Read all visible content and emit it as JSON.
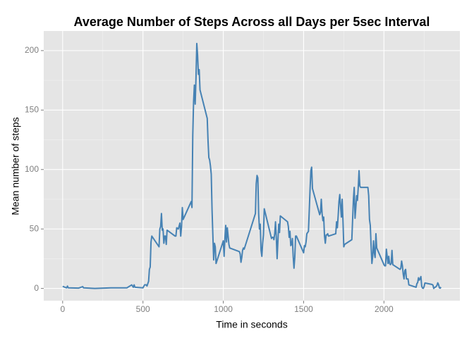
{
  "chart_data": {
    "type": "line",
    "title": "Average Number of Steps Across all Days per 5sec Interval",
    "x_label": "Time in seconds",
    "y_label": "Mean number of steps",
    "color": "#4682b4",
    "x": [
      0,
      25,
      30,
      35,
      100,
      125,
      130,
      200,
      300,
      400,
      430,
      440,
      445,
      450,
      500,
      510,
      520,
      525,
      535,
      540,
      545,
      550,
      555,
      600,
      605,
      610,
      615,
      620,
      625,
      630,
      635,
      640,
      645,
      650,
      700,
      705,
      710,
      720,
      730,
      735,
      740,
      745,
      750,
      800,
      805,
      810,
      815,
      820,
      825,
      830,
      835,
      840,
      845,
      850,
      855,
      900,
      905,
      910,
      915,
      920,
      925,
      930,
      935,
      940,
      945,
      950,
      955,
      1000,
      1005,
      1010,
      1015,
      1020,
      1025,
      1030,
      1035,
      1040,
      1100,
      1105,
      1110,
      1115,
      1120,
      1125,
      1130,
      1200,
      1205,
      1210,
      1215,
      1220,
      1225,
      1230,
      1235,
      1240,
      1245,
      1250,
      1255,
      1300,
      1305,
      1310,
      1315,
      1320,
      1325,
      1330,
      1335,
      1340,
      1345,
      1350,
      1355,
      1400,
      1405,
      1410,
      1415,
      1420,
      1425,
      1430,
      1435,
      1440,
      1445,
      1450,
      1455,
      1500,
      1505,
      1510,
      1515,
      1520,
      1525,
      1530,
      1535,
      1540,
      1545,
      1550,
      1555,
      1600,
      1605,
      1610,
      1615,
      1620,
      1625,
      1630,
      1635,
      1640,
      1645,
      1650,
      1655,
      1700,
      1705,
      1710,
      1715,
      1720,
      1725,
      1730,
      1735,
      1740,
      1745,
      1750,
      1755,
      1800,
      1805,
      1810,
      1815,
      1820,
      1825,
      1830,
      1835,
      1840,
      1845,
      1850,
      1855,
      1900,
      1905,
      1910,
      1915,
      1920,
      1925,
      1930,
      1935,
      1940,
      1945,
      1950,
      1955,
      2000,
      2005,
      2010,
      2015,
      2020,
      2025,
      2030,
      2035,
      2040,
      2045,
      2050,
      2055,
      2100,
      2105,
      2110,
      2115,
      2120,
      2125,
      2130,
      2135,
      2140,
      2145,
      2150,
      2155,
      2200,
      2205,
      2210,
      2215,
      2220,
      2225,
      2230,
      2235,
      2240,
      2245,
      2250,
      2255,
      2300,
      2305,
      2310,
      2315,
      2320,
      2325,
      2330,
      2335,
      2340,
      2345,
      2350,
      2355
    ],
    "values": [
      1.7,
      0.5,
      2,
      0.5,
      0.3,
      1.5,
      0.5,
      0,
      0.5,
      0.5,
      3,
      1,
      3,
      1,
      0.5,
      3,
      3,
      2,
      6,
      16,
      18,
      39,
      44,
      35,
      50,
      52,
      63,
      49,
      50,
      38,
      44,
      44,
      37,
      49,
      44,
      44,
      51,
      50,
      55,
      44,
      52,
      68,
      58,
      73,
      68,
      129,
      157,
      171,
      155,
      177,
      206,
      196,
      180,
      184,
      167,
      143,
      124,
      110,
      108,
      103,
      96,
      66,
      45,
      24,
      38,
      35,
      21,
      40,
      27,
      42,
      53,
      39,
      51,
      44,
      37,
      34,
      31,
      29,
      22,
      26,
      32,
      34,
      33,
      63,
      88,
      95,
      93,
      63,
      50,
      54,
      32,
      27,
      38,
      45,
      67,
      42,
      43,
      43,
      41,
      46,
      56,
      43,
      25,
      40,
      54,
      47,
      61,
      56,
      52,
      43,
      48,
      36,
      37,
      42,
      27,
      17,
      26,
      44,
      44,
      30,
      36,
      35,
      39,
      46,
      47,
      48,
      65,
      83,
      99,
      102,
      84,
      62,
      64,
      75,
      63,
      57,
      60,
      44,
      38,
      45,
      45,
      46,
      44,
      46,
      56,
      51,
      61,
      73,
      79,
      69,
      60,
      75,
      57,
      35,
      37,
      41,
      58,
      75,
      85,
      59,
      68,
      78,
      74,
      85,
      99,
      86,
      85,
      85,
      78,
      58,
      53,
      36,
      21,
      27,
      40,
      30,
      26,
      46,
      34,
      20,
      19,
      19,
      33,
      27,
      21,
      27,
      21,
      20,
      21,
      32,
      20,
      16,
      17,
      23,
      19,
      12,
      8,
      15,
      16,
      8,
      8,
      8,
      3,
      1,
      4,
      5,
      9,
      7,
      8,
      10,
      2,
      0.3,
      0.1,
      1.6,
      4.6,
      3.3,
      2.8,
      0,
      0.8,
      1,
      1.6,
      2.6,
      4.7,
      3.3,
      0.6,
      0.2,
      1.1
    ],
    "xlim": [
      -117.75,
      2472.75
    ],
    "xticks": [
      0,
      500,
      1000,
      1500,
      2000
    ],
    "xminor": [
      250,
      750,
      1250,
      1750,
      2250
    ],
    "ylim": [
      -10.3,
      216.5
    ],
    "yticks": [
      0,
      50,
      100,
      150,
      200
    ],
    "yminor": [
      25,
      75,
      125,
      175
    ],
    "grid": true
  }
}
